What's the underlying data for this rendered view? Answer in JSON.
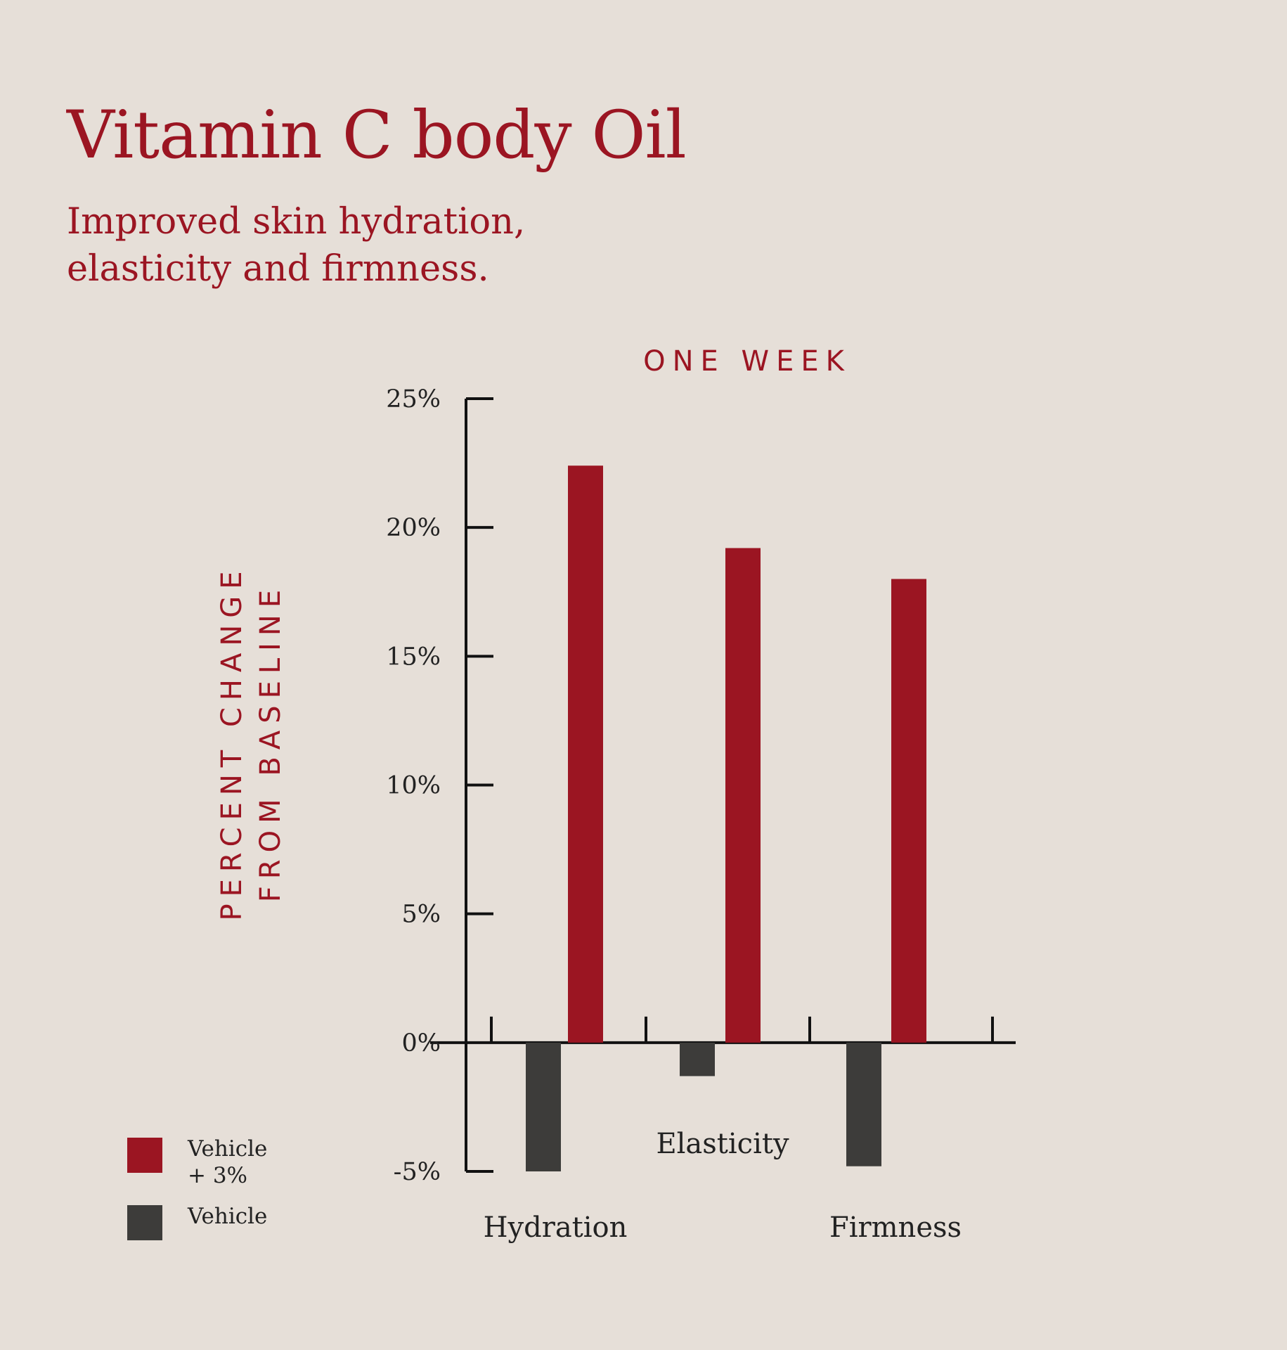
{
  "header": {
    "title": "Vitamin C body Oil",
    "subtitle_line1": "Improved skin hydration,",
    "subtitle_line2": "elasticity and firmness."
  },
  "colors": {
    "background": "#e6dfd8",
    "accent": "#9b1522",
    "vehicle": "#3d3c3a",
    "axis": "#111111"
  },
  "legend": {
    "items": [
      {
        "label": "Vehicle\n+ 3%",
        "color": "#9b1522"
      },
      {
        "label": "Vehicle",
        "color": "#3d3c3a"
      }
    ]
  },
  "chart_data": {
    "type": "bar",
    "title": "ONE WEEK",
    "ylabel_line1": "PERCENT CHANGE",
    "ylabel_line2": "FROM BASELINE",
    "categories": [
      "Hydration",
      "Elasticity",
      "Firmness"
    ],
    "series": [
      {
        "name": "Vehicle + 3%",
        "values": [
          22.4,
          19.2,
          18.0
        ]
      },
      {
        "name": "Vehicle",
        "values": [
          -5.0,
          -1.3,
          -4.8
        ]
      }
    ],
    "ylim": [
      -5,
      25
    ],
    "yticks": [
      25,
      20,
      15,
      10,
      5,
      0,
      -5
    ],
    "ytick_labels": [
      "25%",
      "20%",
      "15%",
      "10%",
      "5%",
      "0%",
      "-5%"
    ],
    "grid": false,
    "legend_position": "bottom-left"
  }
}
